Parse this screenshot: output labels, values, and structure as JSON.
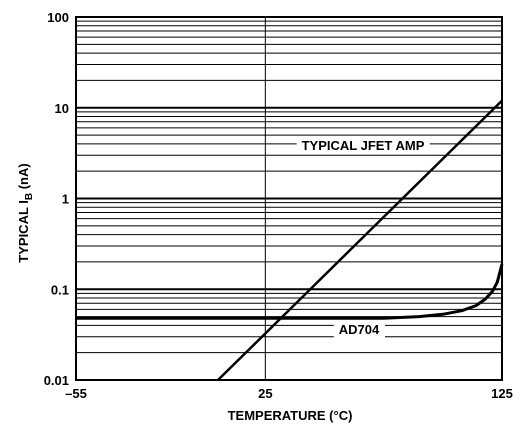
{
  "chart_data": {
    "type": "line",
    "xlabel": "TEMPERATURE (°C)",
    "ylabel_main": "TYPICAL I",
    "ylabel_sub": "B",
    "ylabel_unit": " (nA)",
    "xlim": [
      -55,
      125
    ],
    "ylim": [
      0.01,
      100
    ],
    "yscale": "log",
    "grid": true,
    "x_ticks": [
      {
        "value": -55,
        "label": "–55"
      },
      {
        "value": 25,
        "label": "25"
      },
      {
        "value": 125,
        "label": "125"
      }
    ],
    "y_ticks": [
      {
        "value": 0.01,
        "label": "0.01"
      },
      {
        "value": 0.1,
        "label": "0.1"
      },
      {
        "value": 1,
        "label": "1"
      },
      {
        "value": 10,
        "label": "10"
      },
      {
        "value": 100,
        "label": "100"
      }
    ],
    "series": [
      {
        "name": "TYPICAL JFET AMP",
        "x": [
          5,
          125
        ],
        "y": [
          0.01,
          12
        ],
        "stroke_width": 2.5
      },
      {
        "name": "AD704",
        "x": [
          -55,
          0,
          25,
          50,
          75,
          90,
          100,
          108,
          114,
          118,
          121,
          123,
          125
        ],
        "y": [
          0.048,
          0.048,
          0.048,
          0.048,
          0.048,
          0.05,
          0.053,
          0.058,
          0.066,
          0.078,
          0.095,
          0.12,
          0.19
        ],
        "stroke_width": 3
      }
    ]
  }
}
